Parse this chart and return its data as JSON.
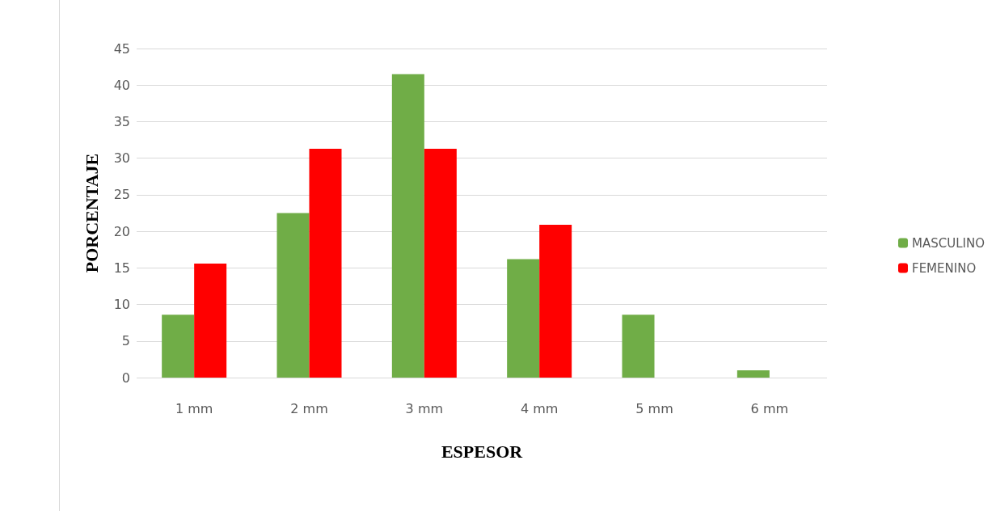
{
  "chart_data": {
    "type": "bar",
    "xlabel": "ESPESOR",
    "ylabel": "PORCENTAJE",
    "categories": [
      "1 mm",
      "2 mm",
      "3 mm",
      "4 mm",
      "5 mm",
      "6 mm"
    ],
    "series": [
      {
        "name": "MASCULINO",
        "color": "#70ad47",
        "values": [
          8.6,
          22.5,
          41.5,
          16.2,
          8.6,
          1.0
        ]
      },
      {
        "name": "FEMENINO",
        "color": "#ff0000",
        "values": [
          15.6,
          31.3,
          31.3,
          20.9,
          0,
          0
        ]
      }
    ],
    "ylim": [
      0,
      45
    ],
    "yticks": [
      0,
      5,
      10,
      15,
      20,
      25,
      30,
      35,
      40,
      45
    ],
    "grid": "y",
    "legend": "right"
  }
}
